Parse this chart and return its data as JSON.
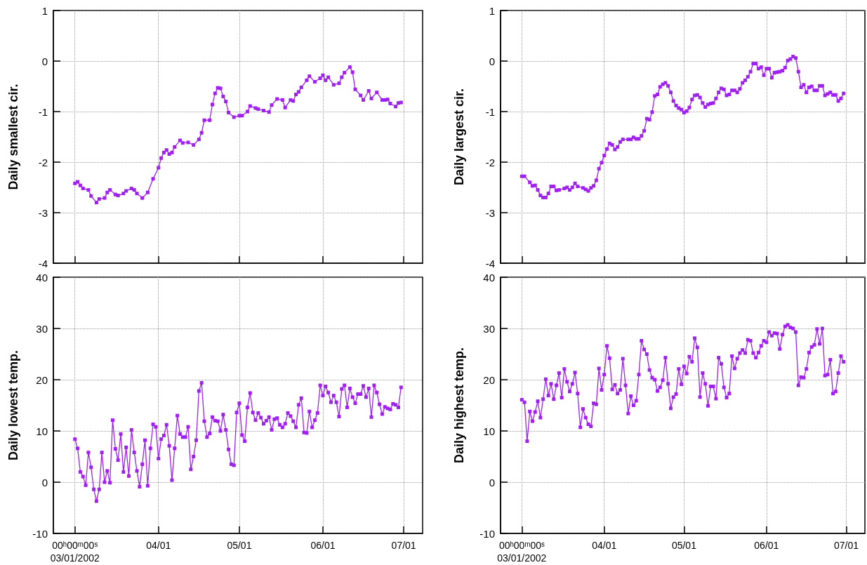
{
  "chart_data": [
    {
      "type": "line",
      "ylabel": "Daily smallest cir.",
      "color": "#a020f0",
      "marker": "square",
      "line_style": "solid",
      "grid": true,
      "tick_labels": "y",
      "xlim": [
        "2002-02-21",
        "2002-07-08"
      ],
      "xticks": [
        {
          "value": "2002-03-01",
          "label": null
        },
        {
          "value": "2002-04-01",
          "label": null
        },
        {
          "value": "2002-05-01",
          "label": null
        },
        {
          "value": "2002-06-01",
          "label": null
        },
        {
          "value": "2002-07-01",
          "label": null
        }
      ],
      "ylim": [
        -4,
        1
      ],
      "yticks": [
        -4,
        -3,
        -2,
        -1,
        0,
        1
      ],
      "x": [
        "2002-03-01",
        "2002-03-02",
        "2002-03-03",
        "2002-03-04",
        "2002-03-06",
        "2002-03-07",
        "2002-03-09",
        "2002-03-10",
        "2002-03-12",
        "2002-03-13",
        "2002-03-14",
        "2002-03-16",
        "2002-03-17",
        "2002-03-19",
        "2002-03-20",
        "2002-03-22",
        "2002-03-23",
        "2002-03-24",
        "2002-03-26",
        "2002-03-28",
        "2002-03-30",
        "2002-04-01",
        "2002-04-02",
        "2002-04-03",
        "2002-04-04",
        "2002-04-05",
        "2002-04-06",
        "2002-04-07",
        "2002-04-09",
        "2002-04-10",
        "2002-04-12",
        "2002-04-14",
        "2002-04-16",
        "2002-04-17",
        "2002-04-18",
        "2002-04-20",
        "2002-04-21",
        "2002-04-22",
        "2002-04-23",
        "2002-04-24",
        "2002-04-25",
        "2002-04-26",
        "2002-04-27",
        "2002-04-29",
        "2002-05-01",
        "2002-05-02",
        "2002-05-04",
        "2002-05-05",
        "2002-05-07",
        "2002-05-08",
        "2002-05-10",
        "2002-05-12",
        "2002-05-13",
        "2002-05-15",
        "2002-05-17",
        "2002-05-18",
        "2002-05-20",
        "2002-05-21",
        "2002-05-22",
        "2002-05-23",
        "2002-05-24",
        "2002-05-26",
        "2002-05-27",
        "2002-05-29",
        "2002-05-31",
        "2002-06-01",
        "2002-06-02",
        "2002-06-03",
        "2002-06-05",
        "2002-06-07",
        "2002-06-08",
        "2002-06-09",
        "2002-06-11",
        "2002-06-12",
        "2002-06-13",
        "2002-06-15",
        "2002-06-16",
        "2002-06-18",
        "2002-06-19",
        "2002-06-21",
        "2002-06-23",
        "2002-06-24",
        "2002-06-25",
        "2002-06-26",
        "2002-06-28",
        "2002-06-29",
        "2002-06-30"
      ],
      "values": [
        -2.42,
        -2.39,
        -2.46,
        -2.52,
        -2.55,
        -2.67,
        -2.8,
        -2.73,
        -2.71,
        -2.6,
        -2.55,
        -2.64,
        -2.66,
        -2.62,
        -2.57,
        -2.52,
        -2.55,
        -2.62,
        -2.71,
        -2.6,
        -2.33,
        -2.11,
        -1.92,
        -1.81,
        -1.76,
        -1.84,
        -1.81,
        -1.7,
        -1.57,
        -1.62,
        -1.61,
        -1.66,
        -1.55,
        -1.42,
        -1.17,
        -1.17,
        -0.86,
        -0.64,
        -0.53,
        -0.54,
        -0.7,
        -0.8,
        -1.02,
        -1.11,
        -1.08,
        -1.08,
        -1.0,
        -0.89,
        -0.93,
        -0.95,
        -0.98,
        -1.01,
        -0.87,
        -0.75,
        -0.77,
        -0.92,
        -0.77,
        -0.79,
        -0.66,
        -0.61,
        -0.52,
        -0.38,
        -0.3,
        -0.41,
        -0.34,
        -0.28,
        -0.38,
        -0.32,
        -0.47,
        -0.44,
        -0.32,
        -0.23,
        -0.12,
        -0.22,
        -0.56,
        -0.68,
        -0.77,
        -0.59,
        -0.74,
        -0.62,
        -0.77,
        -0.77,
        -0.76,
        -0.84,
        -0.9,
        -0.83,
        -0.82
      ]
    },
    {
      "type": "line",
      "ylabel": "Daily largest cir.",
      "color": "#a020f0",
      "marker": "square",
      "line_style": "solid",
      "grid": true,
      "tick_labels": "y",
      "xlim": [
        "2002-02-21",
        "2002-07-08"
      ],
      "xticks": [
        {
          "value": "2002-03-01",
          "label": null
        },
        {
          "value": "2002-04-01",
          "label": null
        },
        {
          "value": "2002-05-01",
          "label": null
        },
        {
          "value": "2002-06-01",
          "label": null
        },
        {
          "value": "2002-07-01",
          "label": null
        }
      ],
      "ylim": [
        -4,
        1
      ],
      "yticks": [
        -4,
        -3,
        -2,
        -1,
        0,
        1
      ],
      "x": [
        "2002-03-01",
        "2002-03-02",
        "2002-03-04",
        "2002-03-05",
        "2002-03-06",
        "2002-03-07",
        "2002-03-08",
        "2002-03-09",
        "2002-03-10",
        "2002-03-11",
        "2002-03-12",
        "2002-03-13",
        "2002-03-14",
        "2002-03-15",
        "2002-03-17",
        "2002-03-18",
        "2002-03-19",
        "2002-03-20",
        "2002-03-21",
        "2002-03-22",
        "2002-03-24",
        "2002-03-25",
        "2002-03-26",
        "2002-03-27",
        "2002-03-28",
        "2002-03-29",
        "2002-03-30",
        "2002-03-31",
        "2002-04-01",
        "2002-04-02",
        "2002-04-03",
        "2002-04-04",
        "2002-04-05",
        "2002-04-06",
        "2002-04-07",
        "2002-04-08",
        "2002-04-10",
        "2002-04-11",
        "2002-04-12",
        "2002-04-13",
        "2002-04-14",
        "2002-04-15",
        "2002-04-16",
        "2002-04-17",
        "2002-04-18",
        "2002-04-19",
        "2002-04-20",
        "2002-04-21",
        "2002-04-22",
        "2002-04-23",
        "2002-04-24",
        "2002-04-25",
        "2002-04-26",
        "2002-04-27",
        "2002-04-28",
        "2002-04-29",
        "2002-04-30",
        "2002-05-01",
        "2002-05-02",
        "2002-05-03",
        "2002-05-04",
        "2002-05-05",
        "2002-05-06",
        "2002-05-07",
        "2002-05-08",
        "2002-05-09",
        "2002-05-10",
        "2002-05-11",
        "2002-05-12",
        "2002-05-13",
        "2002-05-14",
        "2002-05-15",
        "2002-05-16",
        "2002-05-17",
        "2002-05-18",
        "2002-05-19",
        "2002-05-20",
        "2002-05-21",
        "2002-05-22",
        "2002-05-23",
        "2002-05-24",
        "2002-05-25",
        "2002-05-26",
        "2002-05-27",
        "2002-05-28",
        "2002-05-29",
        "2002-05-30",
        "2002-05-31",
        "2002-06-01",
        "2002-06-02",
        "2002-06-03",
        "2002-06-04",
        "2002-06-05",
        "2002-06-06",
        "2002-06-07",
        "2002-06-08",
        "2002-06-09",
        "2002-06-10",
        "2002-06-11",
        "2002-06-12",
        "2002-06-13",
        "2002-06-14",
        "2002-06-15",
        "2002-06-16",
        "2002-06-17",
        "2002-06-18",
        "2002-06-19",
        "2002-06-20",
        "2002-06-21",
        "2002-06-22",
        "2002-06-23",
        "2002-06-24",
        "2002-06-25",
        "2002-06-26",
        "2002-06-27",
        "2002-06-28",
        "2002-06-29",
        "2002-06-30"
      ],
      "values": [
        -2.28,
        -2.28,
        -2.4,
        -2.47,
        -2.46,
        -2.55,
        -2.66,
        -2.7,
        -2.7,
        -2.62,
        -2.48,
        -2.48,
        -2.56,
        -2.55,
        -2.52,
        -2.5,
        -2.55,
        -2.5,
        -2.42,
        -2.48,
        -2.51,
        -2.54,
        -2.57,
        -2.51,
        -2.47,
        -2.36,
        -2.13,
        -2.01,
        -1.87,
        -1.74,
        -1.63,
        -1.66,
        -1.75,
        -1.7,
        -1.6,
        -1.55,
        -1.55,
        -1.55,
        -1.51,
        -1.54,
        -1.54,
        -1.48,
        -1.38,
        -1.14,
        -1.16,
        -1.01,
        -0.69,
        -0.66,
        -0.51,
        -0.46,
        -0.43,
        -0.49,
        -0.62,
        -0.79,
        -0.88,
        -0.93,
        -0.96,
        -1.02,
        -0.99,
        -0.92,
        -0.76,
        -0.68,
        -0.67,
        -0.72,
        -0.83,
        -0.91,
        -0.86,
        -0.84,
        -0.83,
        -0.74,
        -0.62,
        -0.54,
        -0.56,
        -0.68,
        -0.66,
        -0.58,
        -0.58,
        -0.62,
        -0.55,
        -0.43,
        -0.38,
        -0.31,
        -0.21,
        -0.05,
        -0.05,
        -0.15,
        -0.12,
        -0.28,
        -0.15,
        -0.15,
        -0.33,
        -0.23,
        -0.22,
        -0.21,
        -0.19,
        -0.13,
        0.01,
        0.04,
        0.09,
        0.06,
        -0.21,
        -0.52,
        -0.47,
        -0.62,
        -0.52,
        -0.5,
        -0.58,
        -0.58,
        -0.49,
        -0.49,
        -0.68,
        -0.65,
        -0.62,
        -0.67,
        -0.67,
        -0.79,
        -0.74,
        -0.64
      ]
    },
    {
      "type": "line",
      "ylabel": "Daily lowest temp.",
      "color": "#a020f0",
      "marker": "square",
      "line_style": "solid",
      "grid": true,
      "xlim": [
        "2002-02-21",
        "2002-07-08"
      ],
      "xticks": [
        {
          "value": "2002-03-01",
          "label": "00ʰ00ᵐ00ˢ\n03/01/2002"
        },
        {
          "value": "2002-04-01",
          "label": "04/01"
        },
        {
          "value": "2002-05-01",
          "label": "05/01"
        },
        {
          "value": "2002-06-01",
          "label": "06/01"
        },
        {
          "value": "2002-07-01",
          "label": "07/01"
        }
      ],
      "ylim": [
        -10,
        40
      ],
      "yticks": [
        -10,
        0,
        10,
        20,
        30,
        40
      ],
      "x": [
        "2002-03-01",
        "2002-03-02",
        "2002-03-03",
        "2002-03-04",
        "2002-03-05",
        "2002-03-06",
        "2002-03-07",
        "2002-03-08",
        "2002-03-09",
        "2002-03-10",
        "2002-03-11",
        "2002-03-12",
        "2002-03-13",
        "2002-03-14",
        "2002-03-15",
        "2002-03-16",
        "2002-03-17",
        "2002-03-18",
        "2002-03-19",
        "2002-03-20",
        "2002-03-21",
        "2002-03-22",
        "2002-03-23",
        "2002-03-24",
        "2002-03-25",
        "2002-03-26",
        "2002-03-27",
        "2002-03-28",
        "2002-03-29",
        "2002-03-30",
        "2002-03-31",
        "2002-04-01",
        "2002-04-02",
        "2002-04-03",
        "2002-04-04",
        "2002-04-05",
        "2002-04-06",
        "2002-04-07",
        "2002-04-08",
        "2002-04-09",
        "2002-04-10",
        "2002-04-11",
        "2002-04-12",
        "2002-04-13",
        "2002-04-14",
        "2002-04-15",
        "2002-04-16",
        "2002-04-17",
        "2002-04-18",
        "2002-04-19",
        "2002-04-20",
        "2002-04-21",
        "2002-04-22",
        "2002-04-23",
        "2002-04-24",
        "2002-04-25",
        "2002-04-26",
        "2002-04-27",
        "2002-04-28",
        "2002-04-29",
        "2002-04-30",
        "2002-05-01",
        "2002-05-02",
        "2002-05-03",
        "2002-05-04",
        "2002-05-05",
        "2002-05-06",
        "2002-05-07",
        "2002-05-08",
        "2002-05-09",
        "2002-05-10",
        "2002-05-11",
        "2002-05-12",
        "2002-05-13",
        "2002-05-14",
        "2002-05-15",
        "2002-05-16",
        "2002-05-17",
        "2002-05-18",
        "2002-05-19",
        "2002-05-20",
        "2002-05-21",
        "2002-05-22",
        "2002-05-23",
        "2002-05-24",
        "2002-05-25",
        "2002-05-26",
        "2002-05-27",
        "2002-05-28",
        "2002-05-29",
        "2002-05-30",
        "2002-05-31",
        "2002-06-01",
        "2002-06-02",
        "2002-06-03",
        "2002-06-04",
        "2002-06-05",
        "2002-06-06",
        "2002-06-07",
        "2002-06-08",
        "2002-06-09",
        "2002-06-10",
        "2002-06-11",
        "2002-06-12",
        "2002-06-13",
        "2002-06-14",
        "2002-06-15",
        "2002-06-16",
        "2002-06-17",
        "2002-06-18",
        "2002-06-19",
        "2002-06-20",
        "2002-06-21",
        "2002-06-22",
        "2002-06-23",
        "2002-06-24",
        "2002-06-25",
        "2002-06-26",
        "2002-06-27",
        "2002-06-28",
        "2002-06-29",
        "2002-06-30"
      ],
      "values": [
        8.4,
        6.6,
        2.0,
        1.1,
        -0.6,
        5.8,
        2.9,
        -1.4,
        -3.7,
        -1.4,
        5.8,
        0.0,
        2.2,
        -0.1,
        12.1,
        6.5,
        4.3,
        9.4,
        2.0,
        6.8,
        1.2,
        10.2,
        5.8,
        2.2,
        -0.9,
        3.5,
        8.2,
        -0.7,
        6.6,
        11.3,
        10.8,
        4.6,
        8.4,
        9.1,
        11.2,
        7.1,
        0.4,
        6.6,
        13.0,
        9.4,
        8.8,
        8.8,
        10.8,
        2.5,
        5.0,
        8.2,
        17.8,
        19.4,
        11.9,
        8.8,
        9.5,
        12.7,
        12.0,
        11.9,
        10.0,
        13.2,
        10.2,
        6.4,
        3.5,
        3.3,
        13.6,
        15.4,
        9.2,
        8.0,
        14.6,
        17.4,
        13.6,
        12.1,
        13.5,
        12.6,
        11.4,
        12.0,
        12.7,
        10.2,
        12.3,
        12.5,
        11.2,
        10.7,
        11.4,
        13.5,
        12.9,
        11.9,
        10.7,
        15.1,
        16.4,
        9.7,
        9.6,
        13.8,
        10.7,
        12.1,
        13.5,
        18.9,
        16.9,
        18.7,
        17.5,
        15.6,
        16.9,
        15.6,
        12.8,
        18.2,
        18.9,
        14.6,
        18.3,
        16.6,
        15.4,
        17.2,
        17.2,
        18.8,
        16.6,
        18.3,
        12.7,
        18.9,
        17.5,
        15.2,
        13.3,
        14.7,
        14.4,
        14.2,
        15.3,
        15.1,
        14.6,
        18.5
      ]
    },
    {
      "type": "line",
      "ylabel": "Daily highest temp.",
      "color": "#a020f0",
      "marker": "square",
      "line_style": "solid",
      "grid": true,
      "xlim": [
        "2002-02-21",
        "2002-07-08"
      ],
      "xticks": [
        {
          "value": "2002-03-01",
          "label": "00ʰ00ᵐ00ˢ\n03/01/2002"
        },
        {
          "value": "2002-04-01",
          "label": "04/01"
        },
        {
          "value": "2002-05-01",
          "label": "05/01"
        },
        {
          "value": "2002-06-01",
          "label": "06/01"
        },
        {
          "value": "2002-07-01",
          "label": "07/01"
        }
      ],
      "ylim": [
        -10,
        40
      ],
      "yticks": [
        -10,
        0,
        10,
        20,
        30,
        40
      ],
      "x": [
        "2002-03-01",
        "2002-03-02",
        "2002-03-03",
        "2002-03-04",
        "2002-03-05",
        "2002-03-06",
        "2002-03-07",
        "2002-03-08",
        "2002-03-09",
        "2002-03-10",
        "2002-03-11",
        "2002-03-12",
        "2002-03-13",
        "2002-03-14",
        "2002-03-15",
        "2002-03-16",
        "2002-03-17",
        "2002-03-18",
        "2002-03-19",
        "2002-03-20",
        "2002-03-21",
        "2002-03-22",
        "2002-03-23",
        "2002-03-24",
        "2002-03-25",
        "2002-03-26",
        "2002-03-27",
        "2002-03-28",
        "2002-03-29",
        "2002-03-30",
        "2002-03-31",
        "2002-04-01",
        "2002-04-02",
        "2002-04-03",
        "2002-04-04",
        "2002-04-05",
        "2002-04-06",
        "2002-04-07",
        "2002-04-08",
        "2002-04-09",
        "2002-04-10",
        "2002-04-11",
        "2002-04-12",
        "2002-04-13",
        "2002-04-14",
        "2002-04-15",
        "2002-04-16",
        "2002-04-17",
        "2002-04-18",
        "2002-04-19",
        "2002-04-20",
        "2002-04-21",
        "2002-04-22",
        "2002-04-23",
        "2002-04-24",
        "2002-04-25",
        "2002-04-26",
        "2002-04-27",
        "2002-04-28",
        "2002-04-29",
        "2002-04-30",
        "2002-05-01",
        "2002-05-02",
        "2002-05-03",
        "2002-05-04",
        "2002-05-05",
        "2002-05-06",
        "2002-05-07",
        "2002-05-08",
        "2002-05-09",
        "2002-05-10",
        "2002-05-11",
        "2002-05-12",
        "2002-05-13",
        "2002-05-14",
        "2002-05-15",
        "2002-05-16",
        "2002-05-17",
        "2002-05-18",
        "2002-05-19",
        "2002-05-20",
        "2002-05-21",
        "2002-05-22",
        "2002-05-23",
        "2002-05-24",
        "2002-05-25",
        "2002-05-26",
        "2002-05-27",
        "2002-05-28",
        "2002-05-29",
        "2002-05-30",
        "2002-05-31",
        "2002-06-01",
        "2002-06-02",
        "2002-06-03",
        "2002-06-04",
        "2002-06-05",
        "2002-06-06",
        "2002-06-07",
        "2002-06-08",
        "2002-06-09",
        "2002-06-10",
        "2002-06-11",
        "2002-06-12",
        "2002-06-13",
        "2002-06-14",
        "2002-06-15",
        "2002-06-16",
        "2002-06-17",
        "2002-06-18",
        "2002-06-19",
        "2002-06-20",
        "2002-06-21",
        "2002-06-22",
        "2002-06-23",
        "2002-06-24",
        "2002-06-25",
        "2002-06-26",
        "2002-06-27",
        "2002-06-28",
        "2002-06-29",
        "2002-06-30"
      ],
      "values": [
        16.1,
        15.6,
        8.0,
        13.8,
        11.9,
        13.7,
        15.8,
        12.6,
        16.2,
        20.1,
        16.9,
        19.2,
        16.2,
        18.9,
        21.3,
        16.5,
        22.1,
        19.6,
        17.7,
        19.2,
        21.4,
        17.3,
        10.7,
        14.3,
        12.6,
        11.3,
        10.9,
        15.4,
        15.2,
        22.2,
        18.0,
        21.0,
        26.6,
        24.2,
        18.1,
        19.0,
        17.3,
        18.0,
        24.1,
        18.9,
        13.4,
        16.8,
        15.0,
        15.9,
        21.0,
        27.6,
        25.9,
        25.0,
        21.9,
        20.4,
        20.0,
        17.8,
        18.5,
        19.9,
        24.3,
        19.2,
        14.4,
        16.6,
        17.2,
        22.1,
        19.1,
        22.6,
        21.2,
        24.5,
        23.5,
        28.1,
        26.3,
        16.6,
        21.3,
        19.2,
        14.9,
        18.7,
        18.7,
        16.3,
        24.3,
        23.1,
        18.5,
        16.5,
        17.3,
        24.6,
        22.2,
        24.1,
        25.2,
        25.8,
        25.2,
        27.8,
        27.6,
        25.2,
        24.3,
        25.3,
        26.6,
        27.6,
        27.3,
        29.3,
        28.6,
        29.1,
        29.0,
        26.0,
        28.8,
        30.4,
        30.7,
        30.2,
        30.0,
        29.3,
        18.9,
        20.5,
        20.4,
        22.1,
        25.3,
        26.4,
        26.8,
        29.9,
        27.0,
        30.0,
        20.8,
        21.0,
        23.9,
        17.3,
        17.7,
        21.3,
        24.6,
        23.5
      ]
    }
  ]
}
